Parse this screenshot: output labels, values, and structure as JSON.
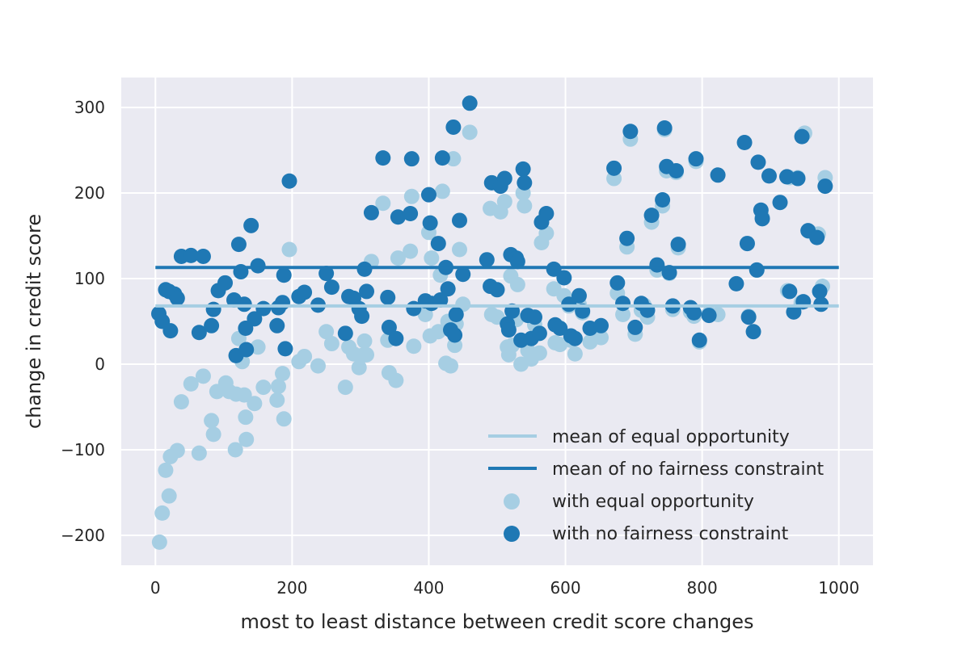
{
  "chart_data": {
    "type": "scatter",
    "title": "",
    "xlabel": "most to least distance between credit score changes",
    "ylabel": "change in credit score",
    "xlim": [
      -50,
      1050
    ],
    "ylim": [
      -235,
      335
    ],
    "xticks": [
      0,
      200,
      400,
      600,
      800,
      1000
    ],
    "yticks": [
      -200,
      -100,
      0,
      100,
      200,
      300
    ],
    "xtick_labels": [
      "0",
      "200",
      "400",
      "600",
      "800",
      "1000"
    ],
    "ytick_labels": [
      "−200",
      "−100",
      "0",
      "100",
      "200",
      "300"
    ],
    "grid": true,
    "background": "#eaeaf2",
    "legend_position": "lower-right",
    "lines": [
      {
        "name": "mean of equal opportunity",
        "color": "#a6cee3",
        "x": [
          0,
          1000
        ],
        "y": [
          68,
          68
        ]
      },
      {
        "name": "mean of no fairness constraint",
        "color": "#1f78b4",
        "x": [
          0,
          1000
        ],
        "y": [
          113,
          113
        ]
      }
    ],
    "series": [
      {
        "name": "with equal opportunity",
        "color": "#a6cee3",
        "points": [
          [
            6,
            -208
          ],
          [
            10,
            -174
          ],
          [
            15,
            -124
          ],
          [
            20,
            -154
          ],
          [
            22,
            -108
          ],
          [
            32,
            -101
          ],
          [
            38,
            -44
          ],
          [
            52,
            -23
          ],
          [
            64,
            -104
          ],
          [
            70,
            -14
          ],
          [
            82,
            -66
          ],
          [
            85,
            -82
          ],
          [
            90,
            -32
          ],
          [
            103,
            -22
          ],
          [
            108,
            -32
          ],
          [
            117,
            -100
          ],
          [
            118,
            -35
          ],
          [
            122,
            30
          ],
          [
            127,
            3
          ],
          [
            130,
            -36
          ],
          [
            132,
            -62
          ],
          [
            133,
            -88
          ],
          [
            145,
            -46
          ],
          [
            150,
            20
          ],
          [
            158,
            -27
          ],
          [
            178,
            -42
          ],
          [
            180,
            -26
          ],
          [
            186,
            -11
          ],
          [
            188,
            -64
          ],
          [
            196,
            134
          ],
          [
            210,
            3
          ],
          [
            218,
            9
          ],
          [
            238,
            -2
          ],
          [
            250,
            38
          ],
          [
            258,
            24
          ],
          [
            278,
            -27
          ],
          [
            283,
            20
          ],
          [
            290,
            12
          ],
          [
            298,
            -4
          ],
          [
            302,
            10
          ],
          [
            306,
            27
          ],
          [
            309,
            11
          ],
          [
            316,
            120
          ],
          [
            333,
            188
          ],
          [
            340,
            28
          ],
          [
            342,
            -10
          ],
          [
            352,
            -19
          ],
          [
            355,
            124
          ],
          [
            373,
            132
          ],
          [
            375,
            196
          ],
          [
            378,
            21
          ],
          [
            395,
            58
          ],
          [
            400,
            154
          ],
          [
            402,
            33
          ],
          [
            404,
            124
          ],
          [
            414,
            38
          ],
          [
            417,
            104
          ],
          [
            420,
            202
          ],
          [
            425,
            1
          ],
          [
            428,
            50
          ],
          [
            432,
            -2
          ],
          [
            436,
            240
          ],
          [
            438,
            22
          ],
          [
            440,
            47
          ],
          [
            445,
            134
          ],
          [
            450,
            70
          ],
          [
            460,
            271
          ],
          [
            490,
            182
          ],
          [
            492,
            58
          ],
          [
            500,
            55
          ],
          [
            505,
            178
          ],
          [
            511,
            190
          ],
          [
            515,
            20
          ],
          [
            517,
            11
          ],
          [
            520,
            103
          ],
          [
            522,
            22
          ],
          [
            528,
            52
          ],
          [
            530,
            93
          ],
          [
            535,
            0
          ],
          [
            538,
            200
          ],
          [
            540,
            185
          ],
          [
            545,
            16
          ],
          [
            550,
            6
          ],
          [
            555,
            46
          ],
          [
            562,
            13
          ],
          [
            565,
            142
          ],
          [
            572,
            153
          ],
          [
            583,
            88
          ],
          [
            585,
            25
          ],
          [
            592,
            23
          ],
          [
            598,
            80
          ],
          [
            605,
            68
          ],
          [
            608,
            28
          ],
          [
            614,
            12
          ],
          [
            620,
            70
          ],
          [
            625,
            60
          ],
          [
            636,
            26
          ],
          [
            652,
            31
          ],
          [
            671,
            217
          ],
          [
            676,
            83
          ],
          [
            684,
            58
          ],
          [
            690,
            137
          ],
          [
            695,
            263
          ],
          [
            702,
            35
          ],
          [
            711,
            63
          ],
          [
            715,
            69
          ],
          [
            720,
            55
          ],
          [
            726,
            166
          ],
          [
            734,
            110
          ],
          [
            742,
            185
          ],
          [
            745,
            274
          ],
          [
            748,
            226
          ],
          [
            752,
            106
          ],
          [
            757,
            64
          ],
          [
            762,
            224
          ],
          [
            765,
            136
          ],
          [
            783,
            61
          ],
          [
            788,
            56
          ],
          [
            791,
            237
          ],
          [
            796,
            26
          ],
          [
            810,
            59
          ],
          [
            823,
            58
          ],
          [
            866,
            141
          ],
          [
            868,
            56
          ],
          [
            880,
            110
          ],
          [
            888,
            172
          ],
          [
            925,
            86
          ],
          [
            928,
            218
          ],
          [
            940,
            218
          ],
          [
            945,
            72
          ],
          [
            950,
            270
          ],
          [
            957,
            155
          ],
          [
            970,
            152
          ],
          [
            972,
            85
          ],
          [
            976,
            91
          ],
          [
            980,
            218
          ]
        ]
      },
      {
        "name": "with no fairness constraint",
        "color": "#1f78b4",
        "points": [
          [
            5,
            59
          ],
          [
            10,
            50
          ],
          [
            15,
            87
          ],
          [
            20,
            85
          ],
          [
            22,
            39
          ],
          [
            28,
            82
          ],
          [
            32,
            77
          ],
          [
            38,
            126
          ],
          [
            52,
            127
          ],
          [
            64,
            37
          ],
          [
            70,
            126
          ],
          [
            82,
            45
          ],
          [
            85,
            64
          ],
          [
            92,
            86
          ],
          [
            102,
            95
          ],
          [
            115,
            75
          ],
          [
            118,
            10
          ],
          [
            122,
            140
          ],
          [
            125,
            108
          ],
          [
            130,
            70
          ],
          [
            132,
            42
          ],
          [
            133,
            17
          ],
          [
            140,
            162
          ],
          [
            145,
            53
          ],
          [
            150,
            115
          ],
          [
            158,
            65
          ],
          [
            178,
            45
          ],
          [
            180,
            66
          ],
          [
            186,
            72
          ],
          [
            188,
            104
          ],
          [
            190,
            18
          ],
          [
            196,
            214
          ],
          [
            210,
            79
          ],
          [
            218,
            84
          ],
          [
            238,
            69
          ],
          [
            250,
            106
          ],
          [
            258,
            90
          ],
          [
            278,
            36
          ],
          [
            283,
            79
          ],
          [
            290,
            77
          ],
          [
            298,
            65
          ],
          [
            302,
            56
          ],
          [
            306,
            111
          ],
          [
            309,
            85
          ],
          [
            316,
            177
          ],
          [
            333,
            241
          ],
          [
            340,
            78
          ],
          [
            342,
            43
          ],
          [
            352,
            30
          ],
          [
            355,
            172
          ],
          [
            373,
            176
          ],
          [
            375,
            240
          ],
          [
            378,
            65
          ],
          [
            395,
            74
          ],
          [
            400,
            198
          ],
          [
            402,
            165
          ],
          [
            404,
            71
          ],
          [
            414,
            141
          ],
          [
            417,
            75
          ],
          [
            420,
            241
          ],
          [
            425,
            113
          ],
          [
            428,
            88
          ],
          [
            432,
            40
          ],
          [
            436,
            277
          ],
          [
            438,
            34
          ],
          [
            440,
            58
          ],
          [
            445,
            168
          ],
          [
            450,
            105
          ],
          [
            460,
            305
          ],
          [
            485,
            122
          ],
          [
            490,
            91
          ],
          [
            492,
            212
          ],
          [
            500,
            87
          ],
          [
            505,
            208
          ],
          [
            511,
            217
          ],
          [
            515,
            47
          ],
          [
            517,
            40
          ],
          [
            520,
            128
          ],
          [
            522,
            62
          ],
          [
            528,
            124
          ],
          [
            530,
            120
          ],
          [
            535,
            28
          ],
          [
            538,
            228
          ],
          [
            540,
            212
          ],
          [
            545,
            57
          ],
          [
            550,
            30
          ],
          [
            555,
            55
          ],
          [
            562,
            36
          ],
          [
            565,
            166
          ],
          [
            572,
            176
          ],
          [
            583,
            111
          ],
          [
            585,
            46
          ],
          [
            592,
            42
          ],
          [
            598,
            101
          ],
          [
            605,
            70
          ],
          [
            608,
            33
          ],
          [
            614,
            30
          ],
          [
            620,
            80
          ],
          [
            625,
            62
          ],
          [
            636,
            42
          ],
          [
            652,
            45
          ],
          [
            671,
            229
          ],
          [
            676,
            95
          ],
          [
            684,
            71
          ],
          [
            690,
            147
          ],
          [
            695,
            272
          ],
          [
            702,
            43
          ],
          [
            711,
            71
          ],
          [
            720,
            63
          ],
          [
            726,
            174
          ],
          [
            734,
            116
          ],
          [
            742,
            192
          ],
          [
            745,
            276
          ],
          [
            748,
            231
          ],
          [
            752,
            107
          ],
          [
            757,
            68
          ],
          [
            762,
            226
          ],
          [
            765,
            140
          ],
          [
            783,
            66
          ],
          [
            788,
            60
          ],
          [
            791,
            240
          ],
          [
            796,
            28
          ],
          [
            810,
            57
          ],
          [
            823,
            221
          ],
          [
            850,
            94
          ],
          [
            862,
            259
          ],
          [
            866,
            141
          ],
          [
            868,
            55
          ],
          [
            875,
            38
          ],
          [
            880,
            110
          ],
          [
            882,
            236
          ],
          [
            886,
            180
          ],
          [
            888,
            170
          ],
          [
            898,
            220
          ],
          [
            914,
            189
          ],
          [
            924,
            219
          ],
          [
            928,
            85
          ],
          [
            934,
            61
          ],
          [
            940,
            217
          ],
          [
            946,
            266
          ],
          [
            948,
            73
          ],
          [
            955,
            156
          ],
          [
            968,
            148
          ],
          [
            972,
            85
          ],
          [
            974,
            70
          ],
          [
            980,
            208
          ]
        ]
      }
    ]
  }
}
